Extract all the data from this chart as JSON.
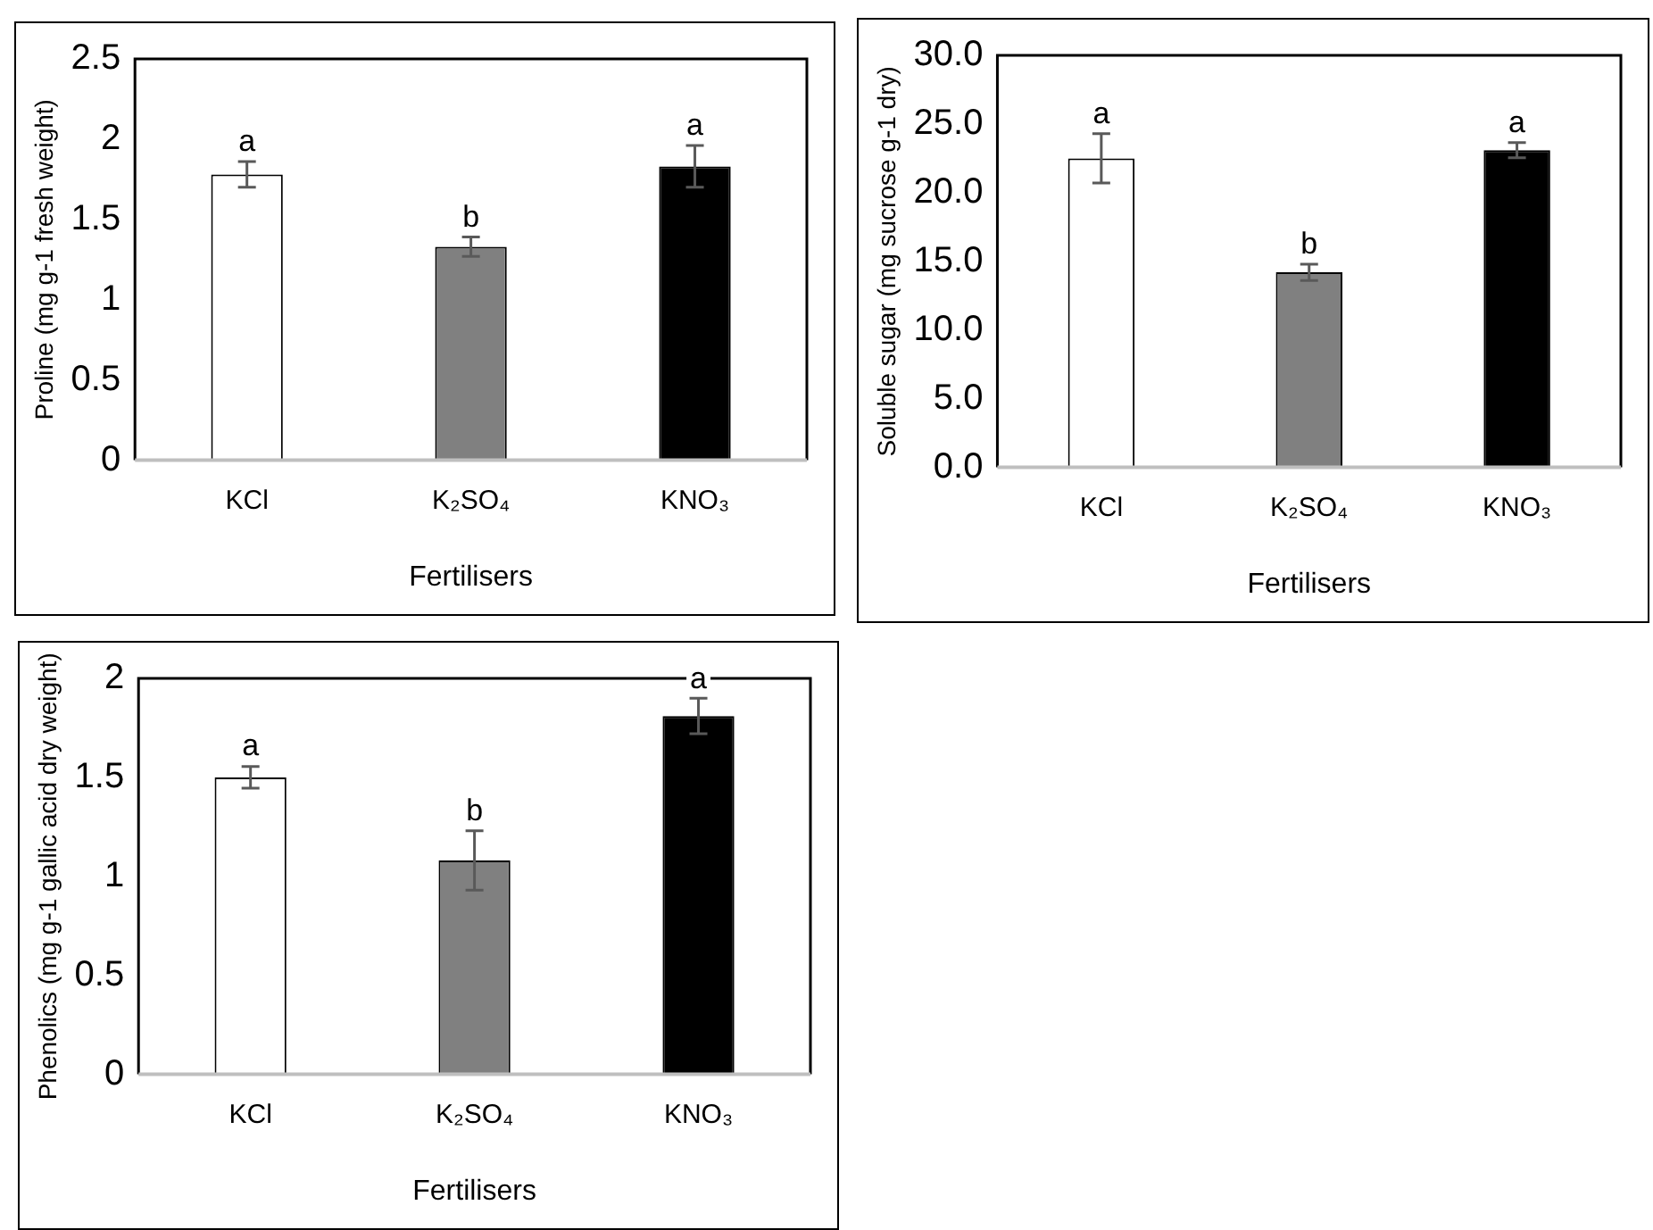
{
  "chart_data": [
    {
      "type": "bar",
      "xlabel": "Fertilisers",
      "ylabel": "Proline (mg g-1 fresh weight)",
      "categories": [
        "KCl",
        "K₂SO₄",
        "KNO₃"
      ],
      "values": [
        1.78,
        1.33,
        1.83
      ],
      "errors": [
        0.08,
        0.06,
        0.13
      ],
      "colors": [
        "#ffffff",
        "#808080",
        "#000000"
      ],
      "ylim": [
        0,
        2.5
      ],
      "yticks": [
        0,
        0.5,
        1,
        1.5,
        2,
        2.5
      ],
      "grid": false,
      "legend": false,
      "annotations": [
        {
          "text": "a",
          "x": "KCl",
          "y": 1.86
        },
        {
          "text": "b",
          "x": "K₂SO₄",
          "y": 1.39
        },
        {
          "text": "a",
          "x": "KNO₃",
          "y": 1.96
        }
      ]
    },
    {
      "type": "bar",
      "xlabel": "Fertilisers",
      "ylabel": "Soluble sugar (mg sucrose g-1 dry)",
      "categories": [
        "KCl",
        "K₂SO₄",
        "KNO₃"
      ],
      "values": [
        22.5,
        14.2,
        23.1
      ],
      "errors": [
        1.8,
        0.6,
        0.55
      ],
      "colors": [
        "#ffffff",
        "#808080",
        "#000000"
      ],
      "ylim": [
        0,
        30
      ],
      "yticks": [
        {
          "value": 0,
          "label": "0.0"
        },
        {
          "value": 5,
          "label": "5.0"
        },
        {
          "value": 10,
          "label": "10.0"
        },
        {
          "value": 15,
          "label": "15.0"
        },
        {
          "value": 20,
          "label": "20.0"
        },
        {
          "value": 25,
          "label": "25.0"
        },
        {
          "value": 30,
          "label": "30.0"
        }
      ],
      "grid": false,
      "legend": false,
      "annotations": [
        {
          "text": "a",
          "x": "KCl",
          "y": 24.3
        },
        {
          "text": "b",
          "x": "K₂SO₄",
          "y": 14.8
        },
        {
          "text": "a",
          "x": "KNO₃",
          "y": 23.65
        }
      ]
    },
    {
      "type": "bar",
      "xlabel": "Fertilisers",
      "ylabel": "Phenolics (mg g-1 gallic acid dry weight)",
      "categories": [
        "KCl",
        "K₂SO₄",
        "KNO₃"
      ],
      "values": [
        1.5,
        1.08,
        1.81
      ],
      "errors": [
        0.055,
        0.15,
        0.09
      ],
      "colors": [
        "#ffffff",
        "#808080",
        "#000000"
      ],
      "ylim": [
        0,
        2
      ],
      "yticks": [
        0,
        0.5,
        1,
        1.5,
        2
      ],
      "grid": false,
      "legend": false,
      "annotations": [
        {
          "text": "a",
          "x": "KCl",
          "y": 1.56
        },
        {
          "text": "b",
          "x": "K₂SO₄",
          "y": 1.23
        },
        {
          "text": "a",
          "x": "KNO₃",
          "y": 1.9
        }
      ]
    }
  ]
}
